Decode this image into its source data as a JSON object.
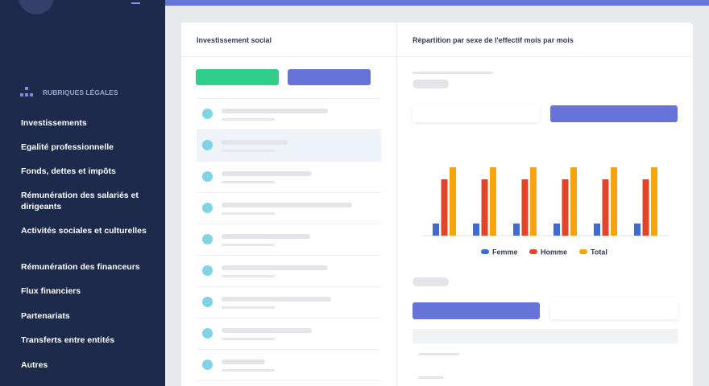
{
  "sidebar": {
    "section": "RUBRIQUES LÉGALES",
    "items": [
      "Investissements",
      "Egalité professionnelle",
      "Fonds, dettes et impôts",
      "Rémunération des salariés et dirigeants",
      "Activités sociales et culturelles",
      "Rémunération des financeurs",
      "Flux financiers",
      "Partenariats",
      "Transferts entre entités",
      "Autres"
    ]
  },
  "left_panel": {
    "title": "Investissement social"
  },
  "chart_data": {
    "type": "bar",
    "title": "Répartition par sexe de l'effectif mois par mois",
    "categories": [
      null,
      null,
      null,
      null,
      null,
      null
    ],
    "series": [
      {
        "name": "Femme",
        "color": "#3d6bd0",
        "values": [
          15,
          15,
          15,
          15,
          15,
          15
        ]
      },
      {
        "name": "Homme",
        "color": "#e0442a",
        "values": [
          70,
          70,
          70,
          70,
          70,
          70
        ]
      },
      {
        "name": "Total",
        "color": "#f6a40e",
        "values": [
          85,
          85,
          85,
          85,
          85,
          85
        ]
      }
    ],
    "ylim": [
      0,
      100
    ]
  }
}
